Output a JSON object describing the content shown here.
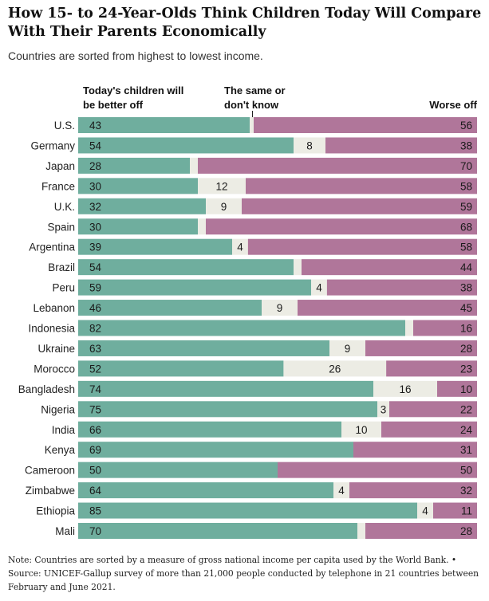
{
  "title": "How 15- to 24-Year-Olds Think Children Today Will Compare With Their Parents Economically",
  "subtitle": "Countries are sorted from highest to lowest income.",
  "headers": {
    "better": "Today's children will be better off",
    "same": "The same or don't know",
    "worse": "Worse off"
  },
  "note": "Note: Countries are sorted by a measure of gross national income per capita used by the World Bank.  •  Source: UNICEF-Gallup survey of more than 21,000 people conducted by telephone in 21 countries between February and June 2021.",
  "colors": {
    "better": "#6fae9e",
    "same": "#ecece4",
    "worse": "#b0769a"
  },
  "chart_data": {
    "type": "bar",
    "orientation": "horizontal",
    "stacked": true,
    "title": "How 15- to 24-Year-Olds Think Children Today Will Compare With Their Parents Economically",
    "categories": [
      "U.S.",
      "Germany",
      "Japan",
      "France",
      "U.K.",
      "Spain",
      "Argentina",
      "Brazil",
      "Peru",
      "Lebanon",
      "Indonesia",
      "Ukraine",
      "Morocco",
      "Bangladesh",
      "Nigeria",
      "India",
      "Kenya",
      "Cameroon",
      "Zimbabwe",
      "Ethiopia",
      "Mali"
    ],
    "series": [
      {
        "name": "Today's children will be better off",
        "values": [
          43,
          54,
          28,
          30,
          32,
          30,
          39,
          54,
          59,
          46,
          82,
          63,
          52,
          74,
          75,
          66,
          69,
          50,
          64,
          85,
          70
        ]
      },
      {
        "name": "The same or don't know",
        "values": [
          1,
          8,
          2,
          12,
          9,
          2,
          4,
          2,
          4,
          9,
          2,
          9,
          26,
          16,
          3,
          10,
          0,
          0,
          4,
          4,
          2
        ]
      },
      {
        "name": "Worse off",
        "values": [
          56,
          38,
          70,
          58,
          59,
          68,
          58,
          44,
          38,
          45,
          16,
          28,
          23,
          10,
          22,
          24,
          31,
          50,
          32,
          11,
          28
        ]
      }
    ],
    "labels": {
      "same": [
        "",
        "8",
        "",
        "12",
        "9",
        "",
        "4",
        "",
        "4",
        "9",
        "",
        "9",
        "26",
        "16",
        "3",
        "10",
        "",
        "",
        "4",
        "4",
        ""
      ]
    },
    "xlim": [
      0,
      100
    ],
    "legend": "top"
  }
}
